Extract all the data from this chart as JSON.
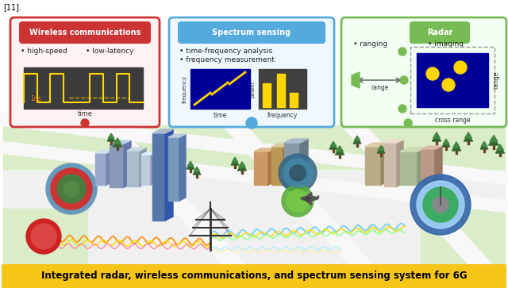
{
  "fig_w": 6.4,
  "fig_h": 3.63,
  "caption": "Integrated radar, wireless communications, and spectrum sensing system for 6G",
  "caption_bg": "#F5C518",
  "caption_color": "#000000",
  "caption_fontsize": 8.5,
  "box1_title": "Wireless communications",
  "box1_edge": "#cc3333",
  "box1_bg": "#fff2f2",
  "box2_title": "Spectrum sensing",
  "box2_edge": "#55aadd",
  "box2_bg": "#f0f8ff",
  "box3_title": "Radar",
  "box3_edge": "#77bb55",
  "box3_bg": "#f2fff2",
  "scene_bg": "#f0f0f0",
  "road_bg": "#ffffff",
  "road_color": "#d8d8d8",
  "green_area": "#daecc8",
  "wave_colors": [
    "#ff8800",
    "#ffdd00",
    "#00bbff",
    "#ffaacc",
    "#aaeeff",
    "#88ff88"
  ],
  "tower_color": "#333333",
  "ref_text": "[11]."
}
